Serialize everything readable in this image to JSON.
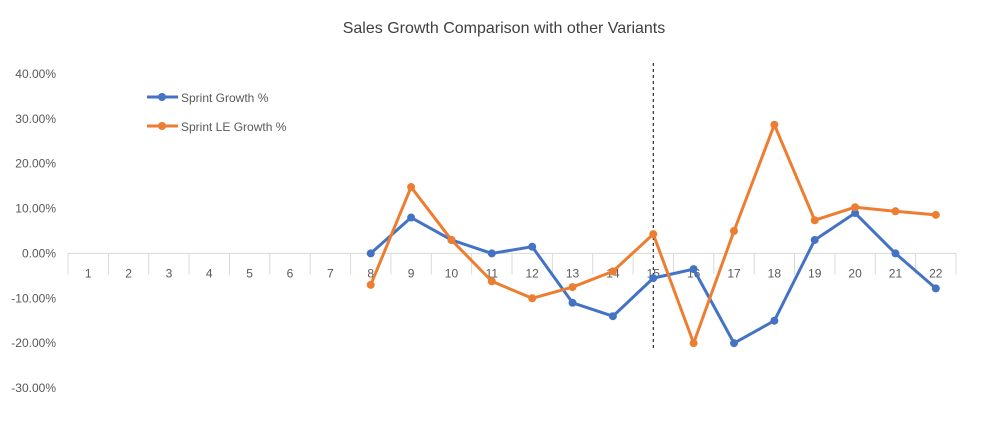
{
  "chart_data": {
    "type": "line",
    "title": "Sales Growth Comparison with other Variants",
    "xlabel": "",
    "ylabel": "",
    "categories": [
      "1",
      "2",
      "3",
      "4",
      "5",
      "6",
      "7",
      "8",
      "9",
      "10",
      "11",
      "12",
      "13",
      "14",
      "15",
      "16",
      "17",
      "18",
      "19",
      "20",
      "21",
      "22"
    ],
    "ylim": [
      -0.3,
      0.4
    ],
    "yticks": [
      0.4,
      0.3,
      0.2,
      0.1,
      0.0,
      -0.1,
      -0.2,
      -0.3
    ],
    "ytick_labels": [
      "40.00%",
      "30.00%",
      "20.00%",
      "10.00%",
      "0.00%",
      "-10.00%",
      "-20.00%",
      "-30.00%"
    ],
    "grid": false,
    "legend_position": "top-left",
    "marker_line_category": "15",
    "series": [
      {
        "name": "Sprint Growth %",
        "color": "#4472C4",
        "values": [
          null,
          null,
          null,
          null,
          null,
          null,
          null,
          0.0,
          0.08,
          0.03,
          0.0,
          0.015,
          -0.11,
          -0.14,
          -0.055,
          -0.035,
          -0.2,
          -0.15,
          0.03,
          0.09,
          0.0,
          -0.078
        ]
      },
      {
        "name": "Sprint LE Growth %",
        "color": "#ED7D31",
        "values": [
          null,
          null,
          null,
          null,
          null,
          null,
          null,
          -0.07,
          0.148,
          0.03,
          -0.062,
          -0.1,
          -0.075,
          -0.04,
          0.043,
          -0.2,
          0.05,
          0.287,
          0.074,
          0.103,
          0.094,
          0.086
        ]
      }
    ]
  }
}
